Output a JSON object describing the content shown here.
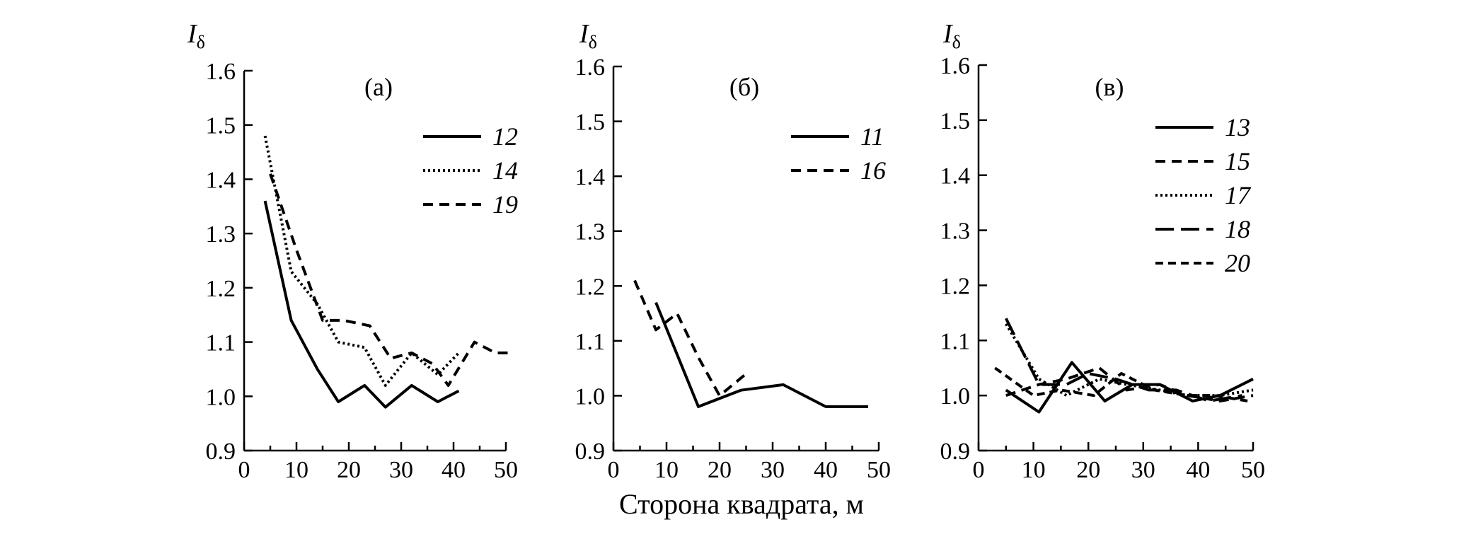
{
  "figure": {
    "x_axis_title": "Сторона квадрата, м"
  },
  "styles": {
    "line_color": "#000000",
    "dash_patterns": {
      "solid": "",
      "dotted": "3 4",
      "dashed": "14 9",
      "longdash": "26 10",
      "shortdash": "11 7"
    }
  },
  "chart_data": [
    {
      "type": "line",
      "panel_label": "(а)",
      "ylabel": "I",
      "ylabel_sub": "δ",
      "xlim": [
        0,
        50
      ],
      "ylim": [
        0.9,
        1.6
      ],
      "xticks": [
        0,
        10,
        20,
        30,
        40,
        50
      ],
      "yticks": [
        "0.9",
        "1.0",
        "1.1",
        "1.2",
        "1.3",
        "1.4",
        "1.5",
        "1.6"
      ],
      "legend_position": "right",
      "series": [
        {
          "name": "12",
          "style": "solid",
          "x": [
            4,
            9,
            14,
            18,
            23,
            27,
            32,
            37,
            41
          ],
          "y": [
            1.36,
            1.14,
            1.05,
            0.99,
            1.02,
            0.98,
            1.02,
            0.99,
            1.01
          ]
        },
        {
          "name": "14",
          "style": "dotted",
          "x": [
            4,
            9,
            14,
            18,
            23,
            27,
            32,
            37,
            41
          ],
          "y": [
            1.48,
            1.23,
            1.17,
            1.1,
            1.09,
            1.02,
            1.08,
            1.04,
            1.08
          ]
        },
        {
          "name": "19",
          "style": "dashed",
          "x": [
            5,
            10,
            15,
            19,
            24,
            28,
            32,
            36,
            39,
            44,
            48,
            51
          ],
          "y": [
            1.41,
            1.27,
            1.14,
            1.14,
            1.13,
            1.07,
            1.08,
            1.06,
            1.02,
            1.1,
            1.08,
            1.08
          ]
        }
      ]
    },
    {
      "type": "line",
      "panel_label": "(б)",
      "ylabel": "I",
      "ylabel_sub": "δ",
      "xlim": [
        0,
        50
      ],
      "ylim": [
        0.9,
        1.6
      ],
      "xticks": [
        0,
        10,
        20,
        30,
        40,
        50
      ],
      "yticks": [
        "0.9",
        "1.0",
        "1.1",
        "1.2",
        "1.3",
        "1.4",
        "1.5",
        "1.6"
      ],
      "legend_position": "right",
      "series": [
        {
          "name": "11",
          "style": "solid",
          "x": [
            8,
            16,
            24,
            32,
            40,
            48
          ],
          "y": [
            1.17,
            0.98,
            1.01,
            1.02,
            0.98,
            0.98
          ]
        },
        {
          "name": "16",
          "style": "dashed",
          "x": [
            4,
            8,
            12,
            16,
            20,
            25
          ],
          "y": [
            1.21,
            1.12,
            1.15,
            1.07,
            1.0,
            1.04
          ]
        }
      ]
    },
    {
      "type": "line",
      "panel_label": "(в)",
      "ylabel": "I",
      "ylabel_sub": "δ",
      "xlim": [
        0,
        50
      ],
      "ylim": [
        0.9,
        1.6
      ],
      "xticks": [
        0,
        10,
        20,
        30,
        40,
        50
      ],
      "yticks": [
        "0.9",
        "1.0",
        "1.1",
        "1.2",
        "1.3",
        "1.4",
        "1.5",
        "1.6"
      ],
      "legend_position": "right",
      "series": [
        {
          "name": "13",
          "style": "solid",
          "x": [
            5,
            11,
            17,
            23,
            28,
            33,
            39,
            44,
            50
          ],
          "y": [
            1.01,
            0.97,
            1.06,
            0.99,
            1.02,
            1.02,
            0.99,
            1.0,
            1.03
          ]
        },
        {
          "name": "15",
          "style": "dashed",
          "x": [
            5,
            11,
            16,
            22,
            27,
            33,
            38,
            44,
            50
          ],
          "y": [
            1.0,
            1.02,
            1.03,
            1.05,
            1.01,
            1.02,
            1.0,
            0.99,
            1.0
          ]
        },
        {
          "name": "17",
          "style": "dotted",
          "x": [
            5,
            11,
            16,
            22,
            27,
            33,
            38,
            44,
            50
          ],
          "y": [
            1.13,
            1.03,
            1.0,
            1.03,
            1.02,
            1.01,
            1.0,
            1.0,
            1.01
          ]
        },
        {
          "name": "18",
          "style": "longdash",
          "x": [
            5,
            11,
            16,
            20,
            25,
            31,
            36,
            42,
            48
          ],
          "y": [
            1.14,
            1.02,
            1.02,
            1.04,
            1.03,
            1.01,
            1.01,
            0.99,
            1.0
          ]
        },
        {
          "name": "20",
          "style": "shortdash",
          "x": [
            3,
            10,
            15,
            21,
            26,
            32,
            38,
            43,
            49
          ],
          "y": [
            1.05,
            1.0,
            1.01,
            1.0,
            1.04,
            1.01,
            1.0,
            1.0,
            0.99
          ]
        }
      ]
    }
  ]
}
